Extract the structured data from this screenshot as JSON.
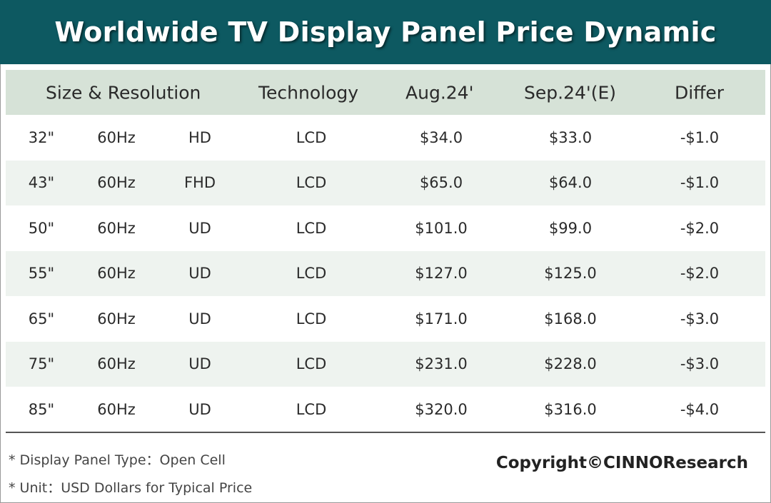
{
  "title": "Worldwide TV Display Panel Price Dynamic",
  "chart_data": {
    "type": "table",
    "columns": [
      "Size & Resolution",
      "Technology",
      "Aug.24'",
      "Sep.24'(E)",
      "Differ"
    ],
    "rows": [
      {
        "size": "32\"",
        "refresh": "60Hz",
        "resolution": "HD",
        "technology": "LCD",
        "aug": "$34.0",
        "sep": "$33.0",
        "differ": "-$1.0"
      },
      {
        "size": "43\"",
        "refresh": "60Hz",
        "resolution": "FHD",
        "technology": "LCD",
        "aug": "$65.0",
        "sep": "$64.0",
        "differ": "-$1.0"
      },
      {
        "size": "50\"",
        "refresh": "60Hz",
        "resolution": "UD",
        "technology": "LCD",
        "aug": "$101.0",
        "sep": "$99.0",
        "differ": "-$2.0"
      },
      {
        "size": "55\"",
        "refresh": "60Hz",
        "resolution": "UD",
        "technology": "LCD",
        "aug": "$127.0",
        "sep": "$125.0",
        "differ": "-$2.0"
      },
      {
        "size": "65\"",
        "refresh": "60Hz",
        "resolution": "UD",
        "technology": "LCD",
        "aug": "$171.0",
        "sep": "$168.0",
        "differ": "-$3.0"
      },
      {
        "size": "75\"",
        "refresh": "60Hz",
        "resolution": "UD",
        "technology": "LCD",
        "aug": "$231.0",
        "sep": "$228.0",
        "differ": "-$3.0"
      },
      {
        "size": "85\"",
        "refresh": "60Hz",
        "resolution": "UD",
        "technology": "LCD",
        "aug": "$320.0",
        "sep": "$316.0",
        "differ": "-$4.0"
      }
    ]
  },
  "notes": [
    "* Display Panel Type：Open Cell",
    "* Unit：USD Dollars for Typical Price"
  ],
  "copyright": "Copyright©CINNOResearch",
  "colors": {
    "title_bg": "#0d5961",
    "header_bg": "#d6e2d7",
    "alt_row_bg": "#eef3ef"
  }
}
